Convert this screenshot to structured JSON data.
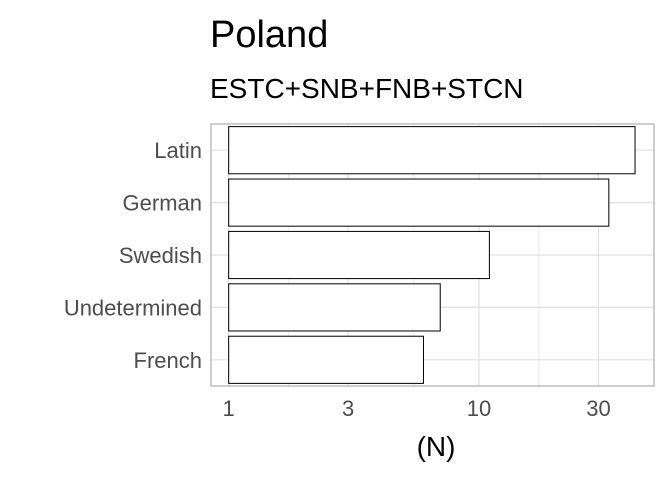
{
  "chart_data": {
    "type": "bar",
    "orientation": "horizontal",
    "title": "Poland",
    "subtitle": "ESTC+SNB+FNB+STCN",
    "xlabel": "(N)",
    "ylabel": "",
    "x_scale": "log10",
    "xlim": [
      0.85,
      50
    ],
    "x_ticks": [
      1,
      3,
      10,
      30
    ],
    "x_tick_labels": [
      "1",
      "3",
      "10",
      "30"
    ],
    "categories": [
      "Latin",
      "German",
      "Swedish",
      "Undetermined",
      "French"
    ],
    "values": [
      42,
      33,
      11,
      7,
      6
    ],
    "grid": true,
    "colors": {
      "bar_fill": "#ffffff",
      "bar_stroke": "#000000",
      "grid": "#e0e0e0",
      "panel_border": "#bdbdbd",
      "tick_text": "#4d4d4d"
    }
  }
}
